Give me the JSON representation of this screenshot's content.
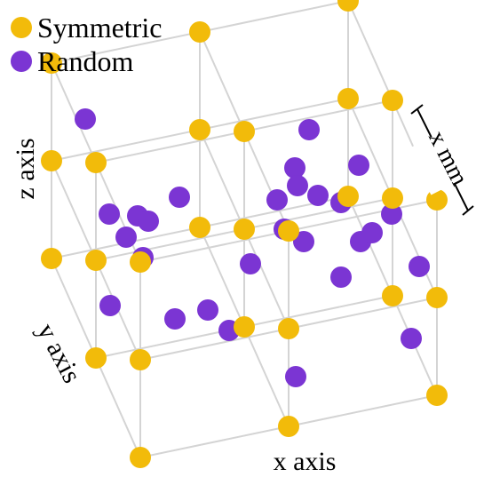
{
  "legend": {
    "items": [
      {
        "label": "Symmetric",
        "color": "#F2BB0A"
      },
      {
        "label": "Random",
        "color": "#7B35D3"
      }
    ]
  },
  "axes": {
    "x_label": "x axis",
    "y_label": "y axis",
    "z_label": "z axis"
  },
  "spacing_label": "x mm",
  "colors": {
    "grid": "#D4D4D4",
    "symmetric": "#F2BB0A",
    "random": "#7B35D3",
    "text": "#000000"
  }
}
